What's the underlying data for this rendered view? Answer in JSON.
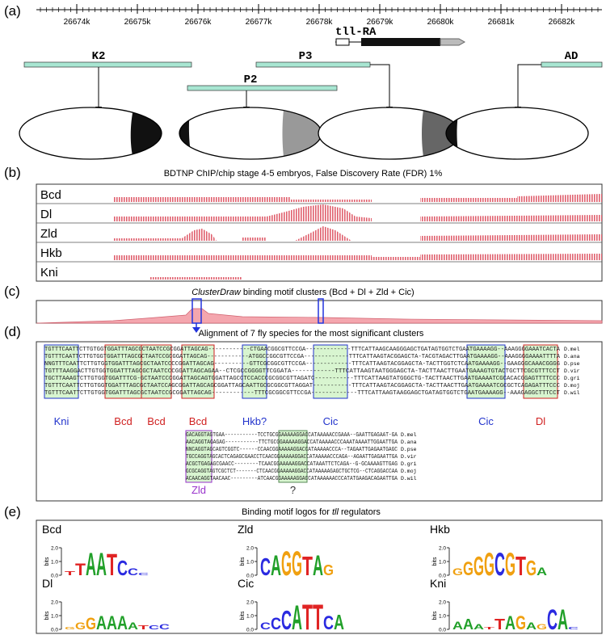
{
  "panel_labels": [
    "(a)",
    "(b)",
    "(c)",
    "(d)",
    "(e)"
  ],
  "genome_ruler": {
    "ticks": [
      "26674k",
      "26675k",
      "26676k",
      "26677k",
      "26678k",
      "26679k",
      "26680k",
      "26681k",
      "26682k"
    ]
  },
  "gene": "tll-RA",
  "enhancers": [
    "K2",
    "P3",
    "P2",
    "AD"
  ],
  "chip": {
    "title": "BDTNP ChIP/chip stage 4-5 embryos, False Discovery Rate (FDR) 1%",
    "tracks": [
      "Bcd",
      "Dl",
      "Zld",
      "Hkb",
      "Kni"
    ]
  },
  "clusters": {
    "title_italic": "ClusterDraw",
    "title_rest": " binding motif clusters (Bcd + Dl + Zld + Cic)"
  },
  "alignment": {
    "title": "Alignment of 7 fly species for the most significant clusters",
    "species": [
      "D.mel",
      "D.ana",
      "D.pse",
      "D.vir",
      "D.gri",
      "D.moj",
      "D.wil"
    ],
    "block1": [
      "TGTTTCAATTCTTGTGGTGGATTTAGCGCTAATCCGCGGATTAGCAG------------CTGAACGGCGTTCCGA-------------TTTCATTAAGCAAGGGAGCTGATAGTGGTCTGAATGAAAAGG--AAAGGGGAAATCACTA",
      "TGTTTCAATTCTTGTGGTGGATTTAGCGCTAATCCGCGGATTAGCAG------------ATGGCCGGCGTTCCGA-------------TTTCATTAAGTACGGAGCTA-TACGTAGACTTGAATGAAAAGG--AAAGGGGAAAATTTTA",
      "NNGTTTCAATTCTTGTGGTGGATTTAGCGCTAATCCCCGGATTAGCAG----------GTTCGCGGCGTTCCGA-------------TTTCATTAAGTACGGAGCTA-TACTTGGTCTCAATGAAAAGG--GAAGGGCAAACGGGG",
      "TGTTTAAGGACTTGTGGTGGATTTAGCGCTAATCCCGGATTAGCAGAA--CTCGCCGGGGTTCGGATA------------TTTCATTAAGTAATGGGAGCTA-TACTTAACTTGAATGAAAGTGTACTGCTTCGCGTTTCCT",
      "TGCTTAAAGTCTTGTGGTGGATTTCG-GCTAATCCCGGATTAGCAGTGGATTAGCCTCCACCCGCGGCGTTAGATC-----------TTTCATTAAGTATGGGCTG-TACTTAACTTGAATGAAAATCGCACACGGAGTTTTCCC",
      "TGTTTCAATTCTTGTGGTGGATTTAGCGCTAATCCAGCGGATTAGCAGCGGATTAGCAATTGCGCGGCGTTAGGAT-----------TTTCATTAAGTACGGAGCTA-TACTTAACTTGAATGAAAATCGCGCTCAGAGATTTCCC",
      "TGTTTCAATTCTTGTGGTGGATTTAGCGCTAATCCGCGGATTAGCAG------------TTTCGCGGCGTTCCGA-------------TTTCATTAAGTAAGGAGCTGATAGTGGTCTGAATGAAAAGG--AAAGAGGCTTTCCT"
    ],
    "block1_motifs": [
      "Kni",
      "Bcd",
      "Bcd",
      "Bcd",
      "Hkb?",
      "Cic",
      "Cic",
      "Dl"
    ],
    "block2": [
      "GACAGGTAGTGAA-----------TCCTGCGGAAAAAGGACCATAAAAACCGAAA--GAATTGAGAAT-GA",
      "AACAGGTAGAGAG-----------TTCTGCGGAAAAAGGACCATAAAAACCCAAATAAAATTGGAATTGA",
      "NNCAGGTAGCAGTCGGTC------CCAACGGAAAAAGGACCATAAAAACCCA--TAGAATTGAGAATGAGC",
      "TGCCAGGTAGCACTCAGAGCGAACCTCAACGGAAAAAGGACCATAAAAACCCAGA--AGAATTGAGAATTGA",
      "ACGCTGAGAGCGAACC--------TCAACGGAAAAAGGACCATAAATTCTCAGA--G-GCAAAAGTTGAG",
      "GCGCAGGTAGTCGCTCT-------CTCAACGGAAAAAGGACCATAAAAAGAGCTGCTCG--CTCAGGACCAA",
      "ACAACAGGTAACAAC---------ATCAACGGAAAAAGGACCATAAAAAACCCATATGAAGACAGAATTGA"
    ],
    "block2_motifs": [
      "Zld",
      "?"
    ]
  },
  "logos": {
    "title_start": "Binding motif logos for ",
    "title_gene": "tll",
    "title_end": " regulators",
    "axis_label": "bits",
    "yticks": [
      {
        "value": 2,
        "label": "2.0"
      },
      {
        "value": 1,
        "label": "1.0"
      },
      {
        "value": 0,
        "label": "0.0"
      }
    ],
    "motifs": [
      {
        "name": "Bcd",
        "columns": [
          {
            "letter": "T",
            "bits": 0.3
          },
          {
            "letter": "T",
            "bits": 0.9
          },
          {
            "letter": "A",
            "bits": 1.7
          },
          {
            "letter": "A",
            "bits": 1.7
          },
          {
            "letter": "T",
            "bits": 1.6
          },
          {
            "letter": "C",
            "bits": 1.1
          },
          {
            "letter": "C",
            "bits": 0.5
          },
          {
            "letter": "C",
            "bits": 0.2
          }
        ]
      },
      {
        "name": "Zld",
        "columns": [
          {
            "letter": "C",
            "bits": 1.3
          },
          {
            "letter": "A",
            "bits": 1.5
          },
          {
            "letter": "G",
            "bits": 1.8
          },
          {
            "letter": "G",
            "bits": 1.8
          },
          {
            "letter": "T",
            "bits": 1.4
          },
          {
            "letter": "A",
            "bits": 1.5
          },
          {
            "letter": "G",
            "bits": 0.8
          }
        ]
      },
      {
        "name": "Hkb",
        "columns": [
          {
            "letter": "G",
            "bits": 0.5
          },
          {
            "letter": "G",
            "bits": 1.0
          },
          {
            "letter": "G",
            "bits": 1.4
          },
          {
            "letter": "G",
            "bits": 1.7
          },
          {
            "letter": "C",
            "bits": 1.7
          },
          {
            "letter": "G",
            "bits": 1.7
          },
          {
            "letter": "T",
            "bits": 1.4
          },
          {
            "letter": "G",
            "bits": 1.1
          },
          {
            "letter": "A",
            "bits": 0.6
          }
        ]
      },
      {
        "name": "Dl",
        "columns": [
          {
            "letter": "G",
            "bits": 0.2
          },
          {
            "letter": "G",
            "bits": 0.5
          },
          {
            "letter": "G",
            "bits": 0.9
          },
          {
            "letter": "A",
            "bits": 1.0
          },
          {
            "letter": "A",
            "bits": 1.0
          },
          {
            "letter": "A",
            "bits": 1.0
          },
          {
            "letter": "A",
            "bits": 0.5
          },
          {
            "letter": "T",
            "bits": 0.3
          },
          {
            "letter": "C",
            "bits": 0.3
          },
          {
            "letter": "C",
            "bits": 0.4
          }
        ]
      },
      {
        "name": "Cic",
        "columns": [
          {
            "letter": "C",
            "bits": 0.5
          },
          {
            "letter": "C",
            "bits": 0.9
          },
          {
            "letter": "C",
            "bits": 1.4
          },
          {
            "letter": "A",
            "bits": 1.8
          },
          {
            "letter": "T",
            "bits": 1.9
          },
          {
            "letter": "T",
            "bits": 1.9
          },
          {
            "letter": "C",
            "bits": 1.0
          },
          {
            "letter": "A",
            "bits": 1.1
          }
        ]
      },
      {
        "name": "Kni",
        "columns": [
          {
            "letter": "A",
            "bits": 0.6
          },
          {
            "letter": "A",
            "bits": 0.8
          },
          {
            "letter": "A",
            "bits": 0.4
          },
          {
            "letter": "T",
            "bits": 0.2
          },
          {
            "letter": "T",
            "bits": 0.8
          },
          {
            "letter": "A",
            "bits": 1.0
          },
          {
            "letter": "G",
            "bits": 1.0
          },
          {
            "letter": "A",
            "bits": 0.5
          },
          {
            "letter": "G",
            "bits": 0.4
          },
          {
            "letter": "C",
            "bits": 1.5
          },
          {
            "letter": "A",
            "bits": 1.5
          },
          {
            "letter": "C",
            "bits": 0.2
          }
        ]
      }
    ]
  }
}
